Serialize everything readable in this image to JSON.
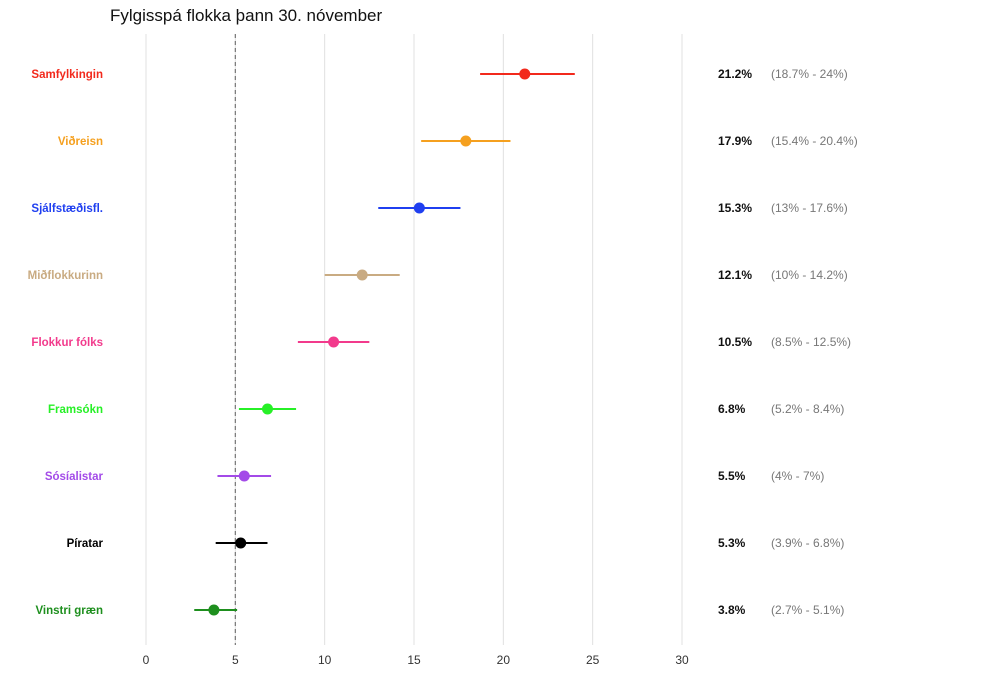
{
  "chart_data": {
    "type": "scatter",
    "title": "Fylgisspá flokka þann 30. nóvember",
    "xlabel": "",
    "ylabel": "",
    "xlim": [
      0,
      30
    ],
    "x_ticks": [
      0,
      5,
      10,
      15,
      20,
      25,
      30
    ],
    "reference_line": 5,
    "grid": true,
    "parties": [
      {
        "name": "Samfylkingin",
        "color": "#f2291c",
        "value": 21.2,
        "low": 18.7,
        "high": 24.0,
        "value_label": "21.2%",
        "ci_label": "(18.7% - 24%)"
      },
      {
        "name": "Viðreisn",
        "color": "#f5a01f",
        "value": 17.9,
        "low": 15.4,
        "high": 20.4,
        "value_label": "17.9%",
        "ci_label": "(15.4% - 20.4%)"
      },
      {
        "name": "Sjálfstæðisfl.",
        "color": "#1f3ff0",
        "value": 15.3,
        "low": 13.0,
        "high": 17.6,
        "value_label": "15.3%",
        "ci_label": "(13% - 17.6%)"
      },
      {
        "name": "Miðflokkurinn",
        "color": "#c9ab82",
        "value": 12.1,
        "low": 10.0,
        "high": 14.2,
        "value_label": "12.1%",
        "ci_label": "(10% - 14.2%)"
      },
      {
        "name": "Flokkur fólks",
        "color": "#f23a8c",
        "value": 10.5,
        "low": 8.5,
        "high": 12.5,
        "value_label": "10.5%",
        "ci_label": "(8.5% - 12.5%)"
      },
      {
        "name": "Framsókn",
        "color": "#27f027",
        "value": 6.8,
        "low": 5.2,
        "high": 8.4,
        "value_label": "6.8%",
        "ci_label": "(5.2% - 8.4%)"
      },
      {
        "name": "Sósíalistar",
        "color": "#a34ae8",
        "value": 5.5,
        "low": 4.0,
        "high": 7.0,
        "value_label": "5.5%",
        "ci_label": "(4% - 7%)"
      },
      {
        "name": "Píratar",
        "color": "#000000",
        "value": 5.3,
        "low": 3.9,
        "high": 6.8,
        "value_label": "5.3%",
        "ci_label": "(3.9% - 6.8%)"
      },
      {
        "name": "Vinstri græn",
        "color": "#1e8f1e",
        "value": 3.8,
        "low": 2.7,
        "high": 5.1,
        "value_label": "3.8%",
        "ci_label": "(2.7% - 5.1%)"
      }
    ]
  }
}
